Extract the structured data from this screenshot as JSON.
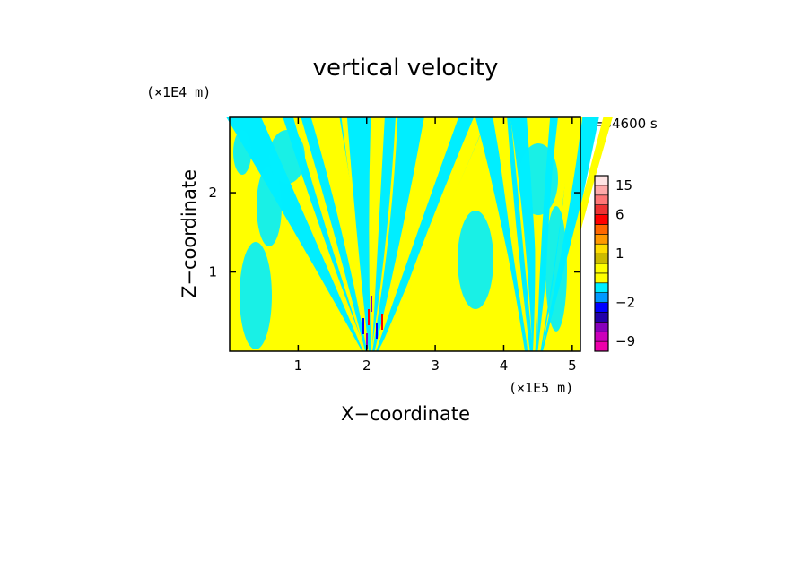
{
  "chart_data": {
    "type": "heatmap",
    "title": "vertical velocity",
    "xlabel": "X−coordinate",
    "ylabel": "Z−coordinate",
    "x_multiplier": "(×1E5 m)",
    "y_multiplier": "(×1E4 m)",
    "time_label": "t=54600 s",
    "xlim": [
      0,
      5.12
    ],
    "ylim": [
      0,
      2.95
    ],
    "x_ticks": [
      1,
      2,
      3,
      4,
      5
    ],
    "x_tick_labels": [
      "1",
      "2",
      "3",
      "4",
      "5"
    ],
    "y_ticks": [
      1,
      2
    ],
    "y_tick_labels": [
      "1",
      "2"
    ],
    "colorbar": {
      "levels": [
        -12,
        -9,
        -6,
        -4,
        -3,
        -2,
        -1,
        -0.5,
        0,
        0.5,
        1,
        2,
        3,
        4,
        6,
        9,
        12,
        15,
        20
      ],
      "colors": [
        "#ee00aa",
        "#cc00bb",
        "#8800bb",
        "#2200aa",
        "#0000ff",
        "#0099ff",
        "#00eeff",
        "#ffff00",
        "#ffff00",
        "#ccbb00",
        "#ffdd00",
        "#ff9900",
        "#ff6600",
        "#ff0000",
        "#ee3333",
        "#ff7777",
        "#ffaaaa",
        "#ffe4e4"
      ],
      "labels": [
        {
          "value": -9,
          "text": "−9"
        },
        {
          "value": -2,
          "text": "−2"
        },
        {
          "value": 1,
          "text": "1"
        },
        {
          "value": 6,
          "text": "6"
        },
        {
          "value": 15,
          "text": "15"
        }
      ]
    },
    "field_colors": {
      "positive": "#ffff00",
      "negative": "#00eeff"
    }
  }
}
